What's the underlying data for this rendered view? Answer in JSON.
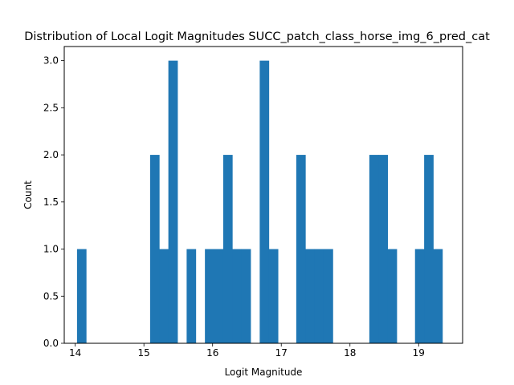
{
  "chart_data": {
    "type": "bar",
    "title": "Distribution of Local Logit Magnitudes SUCC_patch_class_horse_img_6_pred_cat",
    "xlabel": "Logit Magnitude",
    "ylabel": "Count",
    "xlim": [
      13.84,
      19.64
    ],
    "ylim": [
      0,
      3.15
    ],
    "xticks": [
      "14",
      "15",
      "16",
      "17",
      "18",
      "19"
    ],
    "xtick_values": [
      14,
      15,
      16,
      17,
      18,
      19
    ],
    "yticks": [
      "0.0",
      "0.5",
      "1.0",
      "1.5",
      "2.0",
      "2.5",
      "3.0"
    ],
    "ytick_values": [
      0,
      0.5,
      1,
      1.5,
      2,
      2.5,
      3
    ],
    "grid": false,
    "bar_color": "#1f77b4",
    "bin_edges": [
      14.026,
      14.159,
      14.292,
      14.425,
      14.558,
      14.691,
      14.824,
      14.957,
      15.09,
      15.223,
      15.356,
      15.489,
      15.622,
      15.755,
      15.888,
      16.021,
      16.154,
      16.287,
      16.42,
      16.553,
      16.686,
      16.819,
      16.952,
      17.085,
      17.218,
      17.351,
      17.484,
      17.617,
      17.75,
      17.883,
      18.016,
      18.149,
      18.282,
      18.415,
      18.548,
      18.681,
      18.814,
      18.947,
      19.08,
      19.213,
      19.346
    ],
    "counts": [
      1,
      0,
      0,
      0,
      0,
      0,
      0,
      0,
      2,
      1,
      3,
      0,
      1,
      0,
      1,
      1,
      2,
      1,
      1,
      0,
      3,
      1,
      0,
      0,
      2,
      1,
      1,
      1,
      0,
      0,
      0,
      0,
      2,
      2,
      1,
      0,
      0,
      1,
      2,
      1
    ]
  }
}
